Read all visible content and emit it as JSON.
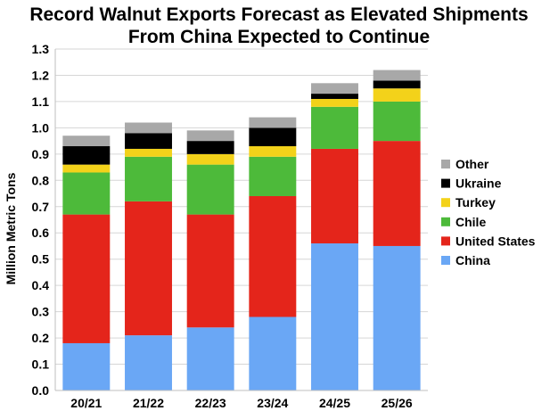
{
  "chart_data": {
    "type": "bar",
    "stacked": true,
    "title": [
      "Record Walnut Exports Forecast as Elevated Shipments",
      "From China Expected to Continue"
    ],
    "xlabel": "",
    "ylabel": "Million Metric Tons",
    "ylim": [
      0,
      1.3
    ],
    "ytick_step": 0.1,
    "yticks": [
      "0.0",
      "0.1",
      "0.2",
      "0.3",
      "0.4",
      "0.5",
      "0.6",
      "0.7",
      "0.8",
      "0.9",
      "1.0",
      "1.1",
      "1.2",
      "1.3"
    ],
    "grid": true,
    "legend_position": "right",
    "categories": [
      "20/21",
      "21/22",
      "22/23",
      "23/24",
      "24/25",
      "25/26"
    ],
    "series": [
      {
        "name": "China",
        "color": "#6aa7f5",
        "values": [
          0.18,
          0.21,
          0.24,
          0.28,
          0.56,
          0.55
        ]
      },
      {
        "name": "United States",
        "color": "#e4251b",
        "values": [
          0.49,
          0.51,
          0.43,
          0.46,
          0.36,
          0.4
        ]
      },
      {
        "name": "Chile",
        "color": "#4dba3a",
        "values": [
          0.16,
          0.17,
          0.19,
          0.15,
          0.16,
          0.15
        ]
      },
      {
        "name": "Turkey",
        "color": "#f3d21a",
        "values": [
          0.03,
          0.03,
          0.04,
          0.04,
          0.03,
          0.05
        ]
      },
      {
        "name": "Ukraine",
        "color": "#000000",
        "values": [
          0.07,
          0.06,
          0.05,
          0.07,
          0.02,
          0.03
        ]
      },
      {
        "name": "Other",
        "color": "#a8a8a8",
        "values": [
          0.04,
          0.04,
          0.04,
          0.04,
          0.04,
          0.04
        ]
      }
    ],
    "legend_order": [
      "Other",
      "Ukraine",
      "Turkey",
      "Chile",
      "United States",
      "China"
    ]
  }
}
